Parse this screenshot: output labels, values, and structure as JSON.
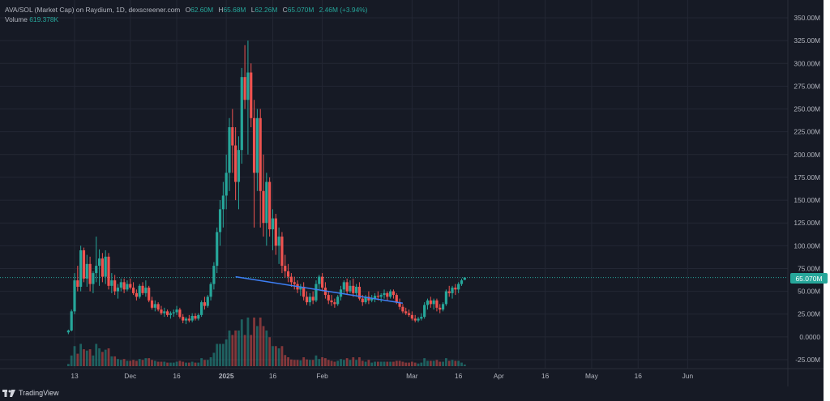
{
  "header": {
    "symbol_line": "AVA/SOL (Market Cap) on Raydium, 1D, dexscreener.com",
    "open_label": "O",
    "open_value": "62.60M",
    "high_label": "H",
    "high_value": "65.68M",
    "low_label": "L",
    "low_value": "62.26M",
    "close_label": "C",
    "close_value": "65.070M",
    "change": "2.46M (+3.94%)",
    "volume_label": "Volume",
    "volume_value": "619.378K"
  },
  "price_badge": "65.070M",
  "brand": {
    "name": "TradingView",
    "icon": "tradingview-logo-icon"
  },
  "colors": {
    "background": "#161a25",
    "up": "#26a69a",
    "down": "#ef5350",
    "trendline": "#3d7ff5",
    "text": "#b2b5be",
    "grid": "#232734"
  },
  "chart_data": {
    "type": "candlestick",
    "y_axis_ticks": [
      "350.00M",
      "325.00M",
      "300.00M",
      "275.00M",
      "250.00M",
      "225.00M",
      "200.00M",
      "175.00M",
      "150.00M",
      "125.00M",
      "100.00M",
      "75.00M",
      "50.00M",
      "25.00M",
      "0.0000",
      "-25.00M"
    ],
    "y_axis_values": [
      350,
      325,
      300,
      275,
      250,
      225,
      200,
      175,
      150,
      125,
      100,
      75,
      50,
      25,
      0,
      -25
    ],
    "x_axis_ticks": [
      "13",
      "Dec",
      "16",
      "2025",
      "16",
      "Feb",
      "Mar",
      "16",
      "Apr",
      "16",
      "May",
      "16",
      "Jun"
    ],
    "x_axis_day_index": [
      0,
      18,
      33,
      49,
      64,
      80,
      109,
      124,
      137,
      152,
      167,
      182,
      198
    ],
    "ylim": [
      -25,
      350
    ],
    "last_price": 65.07,
    "candles_in_millions_ohlc": [
      [
        5,
        8,
        3,
        7
      ],
      [
        7,
        30,
        6,
        28
      ],
      [
        28,
        70,
        25,
        62
      ],
      [
        62,
        78,
        50,
        55
      ],
      [
        55,
        100,
        50,
        95
      ],
      [
        95,
        98,
        60,
        64
      ],
      [
        64,
        90,
        55,
        80
      ],
      [
        80,
        88,
        50,
        58
      ],
      [
        58,
        72,
        48,
        70
      ],
      [
        70,
        110,
        60,
        78
      ],
      [
        78,
        96,
        56,
        86
      ],
      [
        86,
        92,
        60,
        66
      ],
      [
        66,
        95,
        58,
        88
      ],
      [
        88,
        92,
        52,
        56
      ],
      [
        56,
        70,
        48,
        62
      ],
      [
        62,
        68,
        46,
        50
      ],
      [
        50,
        58,
        42,
        54
      ],
      [
        54,
        64,
        50,
        60
      ],
      [
        60,
        64,
        48,
        52
      ],
      [
        52,
        62,
        50,
        58
      ],
      [
        58,
        64,
        52,
        54
      ],
      [
        54,
        60,
        46,
        48
      ],
      [
        48,
        52,
        40,
        44
      ],
      [
        44,
        58,
        42,
        56
      ],
      [
        56,
        60,
        46,
        48
      ],
      [
        48,
        62,
        44,
        54
      ],
      [
        54,
        56,
        38,
        40
      ],
      [
        40,
        44,
        30,
        32
      ],
      [
        32,
        40,
        28,
        36
      ],
      [
        36,
        38,
        28,
        30
      ],
      [
        30,
        34,
        24,
        26
      ],
      [
        26,
        32,
        22,
        28
      ],
      [
        28,
        30,
        22,
        24
      ],
      [
        24,
        28,
        20,
        26
      ],
      [
        26,
        30,
        22,
        27
      ],
      [
        27,
        34,
        24,
        30
      ],
      [
        30,
        32,
        20,
        22
      ],
      [
        22,
        25,
        15,
        18
      ],
      [
        18,
        22,
        14,
        20
      ],
      [
        20,
        24,
        16,
        18
      ],
      [
        18,
        26,
        16,
        23
      ],
      [
        23,
        26,
        18,
        20
      ],
      [
        20,
        26,
        18,
        24
      ],
      [
        24,
        40,
        22,
        38
      ],
      [
        38,
        44,
        30,
        34
      ],
      [
        34,
        46,
        32,
        44
      ],
      [
        44,
        60,
        40,
        58
      ],
      [
        58,
        82,
        52,
        78
      ],
      [
        78,
        120,
        70,
        115
      ],
      [
        115,
        150,
        100,
        140
      ],
      [
        140,
        170,
        120,
        155
      ],
      [
        155,
        200,
        140,
        180
      ],
      [
        180,
        240,
        160,
        230
      ],
      [
        230,
        250,
        180,
        210
      ],
      [
        210,
        230,
        150,
        170
      ],
      [
        170,
        220,
        140,
        205
      ],
      [
        205,
        295,
        190,
        285
      ],
      [
        285,
        320,
        250,
        260
      ],
      [
        260,
        325,
        200,
        290
      ],
      [
        290,
        300,
        230,
        240
      ],
      [
        240,
        260,
        120,
        180
      ],
      [
        180,
        250,
        160,
        240
      ],
      [
        240,
        250,
        120,
        160
      ],
      [
        160,
        200,
        110,
        125
      ],
      [
        125,
        180,
        100,
        170
      ],
      [
        170,
        175,
        110,
        118
      ],
      [
        118,
        140,
        95,
        130
      ],
      [
        130,
        135,
        90,
        100
      ],
      [
        100,
        120,
        80,
        110
      ],
      [
        110,
        115,
        70,
        78
      ],
      [
        78,
        90,
        65,
        72
      ],
      [
        72,
        80,
        60,
        66
      ],
      [
        66,
        70,
        55,
        60
      ],
      [
        60,
        66,
        52,
        58
      ],
      [
        58,
        62,
        48,
        52
      ],
      [
        52,
        58,
        45,
        55
      ],
      [
        55,
        60,
        40,
        44
      ],
      [
        44,
        50,
        35,
        38
      ],
      [
        38,
        48,
        34,
        44
      ],
      [
        44,
        50,
        36,
        40
      ],
      [
        40,
        62,
        38,
        58
      ],
      [
        58,
        68,
        52,
        66
      ],
      [
        66,
        70,
        50,
        54
      ],
      [
        54,
        60,
        42,
        46
      ],
      [
        46,
        50,
        36,
        40
      ],
      [
        40,
        46,
        34,
        38
      ],
      [
        38,
        42,
        32,
        36
      ],
      [
        36,
        46,
        34,
        44
      ],
      [
        44,
        56,
        40,
        52
      ],
      [
        52,
        62,
        48,
        60
      ],
      [
        60,
        64,
        46,
        50
      ],
      [
        50,
        62,
        48,
        56
      ],
      [
        56,
        64,
        44,
        48
      ],
      [
        48,
        58,
        44,
        55
      ],
      [
        55,
        60,
        40,
        42
      ],
      [
        42,
        46,
        34,
        38
      ],
      [
        38,
        46,
        36,
        44
      ],
      [
        44,
        50,
        36,
        40
      ],
      [
        40,
        46,
        38,
        42
      ],
      [
        42,
        48,
        38,
        45
      ],
      [
        45,
        50,
        40,
        44
      ],
      [
        44,
        48,
        38,
        46
      ],
      [
        46,
        52,
        42,
        48
      ],
      [
        48,
        50,
        40,
        44
      ],
      [
        44,
        52,
        42,
        50
      ],
      [
        50,
        52,
        42,
        46
      ],
      [
        46,
        48,
        36,
        38
      ],
      [
        38,
        42,
        30,
        33
      ],
      [
        33,
        36,
        26,
        28
      ],
      [
        28,
        32,
        24,
        26
      ],
      [
        26,
        30,
        22,
        24
      ],
      [
        24,
        28,
        18,
        20
      ],
      [
        20,
        24,
        16,
        18
      ],
      [
        18,
        22,
        16,
        20
      ],
      [
        20,
        26,
        18,
        22
      ],
      [
        22,
        38,
        20,
        35
      ],
      [
        35,
        42,
        30,
        40
      ],
      [
        40,
        44,
        32,
        36
      ],
      [
        36,
        42,
        30,
        40
      ],
      [
        40,
        42,
        28,
        32
      ],
      [
        32,
        36,
        26,
        30
      ],
      [
        30,
        38,
        28,
        36
      ],
      [
        36,
        52,
        34,
        50
      ],
      [
        50,
        56,
        44,
        48
      ],
      [
        48,
        56,
        42,
        54
      ],
      [
        54,
        58,
        46,
        52
      ],
      [
        52,
        60,
        48,
        58
      ],
      [
        58,
        64,
        56,
        62
      ],
      [
        62.6,
        65.68,
        62.26,
        65.07
      ]
    ],
    "candle_start_day_index": -2,
    "trendline_points_day_index_value": [
      [
        52,
        66
      ],
      [
        106,
        37
      ]
    ]
  }
}
